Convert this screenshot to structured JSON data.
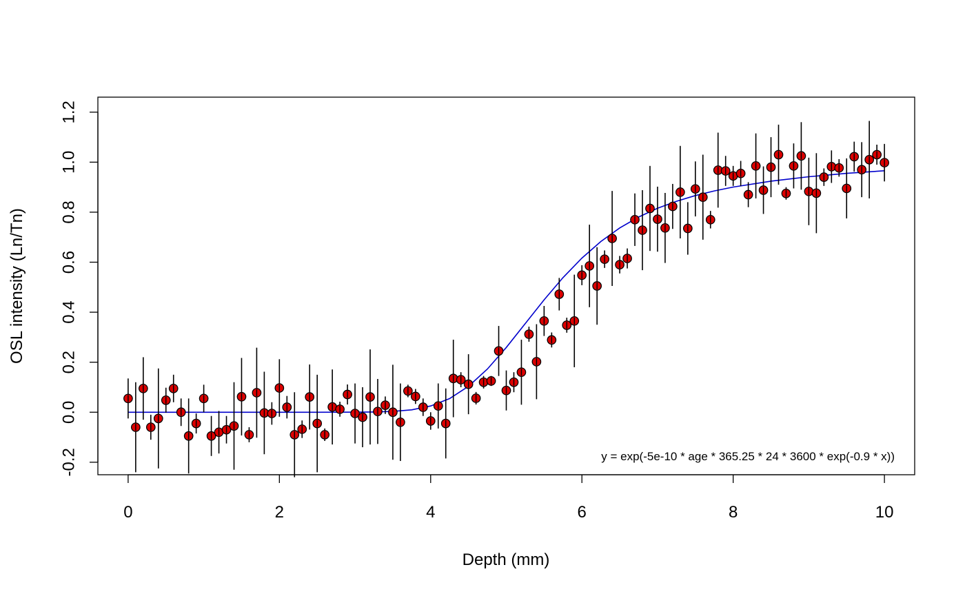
{
  "chart_data": {
    "type": "scatter",
    "title": "",
    "xlabel": "Depth (mm)",
    "ylabel": "OSL intensity (Ln/Tn)",
    "xlim": [
      -0.4,
      10.4
    ],
    "ylim": [
      -0.25,
      1.26
    ],
    "x_ticks": [
      0,
      2,
      4,
      6,
      8,
      10
    ],
    "x_tick_labels": [
      "0",
      "2",
      "4",
      "6",
      "8",
      "10"
    ],
    "y_ticks": [
      -0.2,
      0.0,
      0.2,
      0.4,
      0.6,
      0.8,
      1.0,
      1.2
    ],
    "y_tick_labels": [
      "-0.2",
      "0.0",
      "0.2",
      "0.4",
      "0.6",
      "0.8",
      "1.0",
      "1.2"
    ],
    "grid": false,
    "annotation": "y = exp(-5e-10 * age * 365.25 * 24 * 3600 * exp(-0.9 * x))",
    "colors": {
      "point_fill": "#dd0000",
      "point_edge": "#000000",
      "fit_line": "#0000cc",
      "error_bar": "#000000"
    },
    "series": [
      {
        "x": [
          0.0,
          0.1,
          0.2,
          0.3,
          0.4,
          0.5,
          0.6,
          0.7,
          0.8,
          0.9,
          1.0,
          1.1,
          1.2,
          1.3,
          1.4,
          1.5,
          1.6,
          1.7,
          1.8,
          1.9,
          2.0,
          2.1,
          2.2,
          2.3,
          2.4,
          2.5,
          2.6,
          2.7,
          2.8,
          2.9,
          3.0,
          3.1,
          3.2,
          3.3,
          3.4,
          3.5,
          3.6,
          3.7,
          3.8,
          3.9,
          4.0,
          4.1,
          4.2,
          4.3,
          4.4,
          4.5,
          4.6,
          4.7,
          4.8,
          4.9,
          5.0,
          5.1,
          5.2,
          5.3,
          5.4,
          5.5,
          5.6,
          5.7,
          5.8,
          5.9,
          6.0,
          6.1,
          6.2,
          6.3,
          6.4,
          6.5,
          6.6,
          6.7,
          6.8,
          6.9,
          7.0,
          7.1,
          7.2,
          7.3,
          7.4,
          7.5,
          7.6,
          7.7,
          7.8,
          7.9,
          8.0,
          8.1,
          8.2,
          8.3,
          8.4,
          8.5,
          8.6,
          8.7,
          8.8,
          8.9,
          9.0,
          9.1,
          9.2,
          9.3,
          9.4,
          9.5,
          9.6,
          9.7,
          9.8,
          9.9,
          10.0
        ],
        "y": [
          0.055,
          -0.06,
          0.095,
          -0.06,
          -0.025,
          0.048,
          0.095,
          0.0,
          -0.095,
          -0.045,
          0.055,
          -0.095,
          -0.08,
          -0.07,
          -0.055,
          0.062,
          -0.09,
          0.078,
          -0.003,
          -0.005,
          0.097,
          0.02,
          -0.09,
          -0.068,
          0.061,
          -0.045,
          -0.09,
          0.021,
          0.012,
          0.071,
          -0.005,
          -0.02,
          0.061,
          0.003,
          0.028,
          0.0,
          -0.04,
          0.085,
          0.063,
          0.02,
          -0.035,
          0.025,
          -0.045,
          0.135,
          0.13,
          0.112,
          0.056,
          0.12,
          0.125,
          0.245,
          0.087,
          0.12,
          0.16,
          0.312,
          0.202,
          0.365,
          0.289,
          0.472,
          0.348,
          0.365,
          0.548,
          0.585,
          0.505,
          0.612,
          0.695,
          0.59,
          0.615,
          0.77,
          0.728,
          0.815,
          0.772,
          0.737,
          0.823,
          0.88,
          0.735,
          0.893,
          0.86,
          0.77,
          0.968,
          0.965,
          0.945,
          0.955,
          0.87,
          0.985,
          0.888,
          0.98,
          1.03,
          0.875,
          0.985,
          1.025,
          0.883,
          0.876,
          0.94,
          0.982,
          0.977,
          0.895,
          1.022,
          0.97,
          1.01,
          1.03,
          0.998
        ],
        "y_error": [
          0.08,
          0.18,
          0.125,
          0.05,
          0.2,
          0.05,
          0.055,
          0.055,
          0.15,
          0.04,
          0.055,
          0.08,
          0.085,
          0.055,
          0.175,
          0.155,
          0.03,
          0.18,
          0.165,
          0.045,
          0.115,
          0.045,
          0.17,
          0.035,
          0.13,
          0.195,
          0.025,
          0.15,
          0.03,
          0.04,
          0.12,
          0.12,
          0.19,
          0.13,
          0.035,
          0.19,
          0.155,
          0.025,
          0.03,
          0.035,
          0.035,
          0.09,
          0.14,
          0.155,
          0.03,
          0.12,
          0.025,
          0.025,
          0.02,
          0.1,
          0.08,
          0.04,
          0.13,
          0.03,
          0.15,
          0.06,
          0.03,
          0.065,
          0.03,
          0.185,
          0.04,
          0.165,
          0.155,
          0.035,
          0.19,
          0.035,
          0.04,
          0.105,
          0.16,
          0.17,
          0.13,
          0.14,
          0.09,
          0.185,
          0.105,
          0.11,
          0.17,
          0.035,
          0.15,
          0.06,
          0.04,
          0.05,
          0.05,
          0.13,
          0.095,
          0.12,
          0.12,
          0.025,
          0.09,
          0.135,
          0.135,
          0.16,
          0.035,
          0.065,
          0.035,
          0.12,
          0.06,
          0.11,
          0.155,
          0.04,
          0.075
        ]
      },
      {
        "type": "line",
        "fit_x": [
          0,
          0.5,
          1,
          1.5,
          2,
          2.5,
          3,
          3.25,
          3.5,
          3.75,
          4,
          4.25,
          4.5,
          4.75,
          5,
          5.25,
          5.5,
          5.75,
          6,
          6.25,
          6.5,
          6.75,
          7,
          7.25,
          7.5,
          7.75,
          8,
          8.5,
          9,
          9.5,
          10
        ],
        "fit_y": [
          0,
          0,
          0,
          0,
          0,
          0,
          0.0002,
          0.0009,
          0.0032,
          0.0097,
          0.025,
          0.0546,
          0.1034,
          0.1728,
          0.2589,
          0.3541,
          0.4495,
          0.5383,
          0.6164,
          0.6826,
          0.7369,
          0.7806,
          0.8155,
          0.8436,
          0.8665,
          0.8851,
          0.9003,
          0.9241,
          0.9418,
          0.9553,
          0.9658
        ]
      }
    ]
  }
}
